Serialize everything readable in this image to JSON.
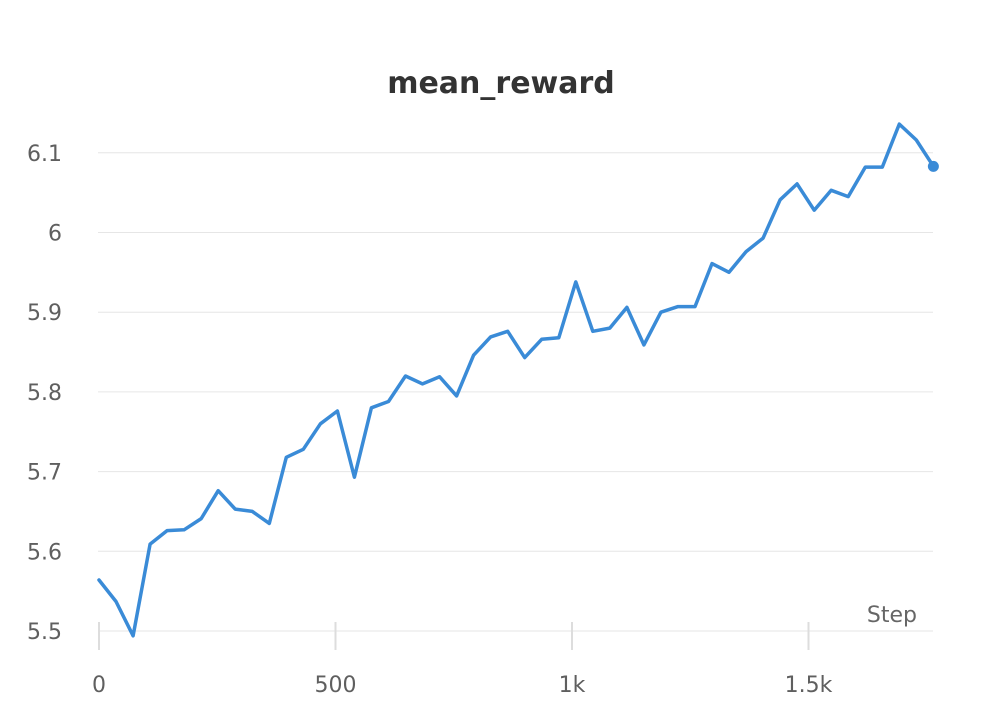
{
  "chart_data": {
    "type": "line",
    "title": "mean_reward",
    "xlabel": "Step",
    "ylabel": "",
    "xlim": [
      0,
      1760
    ],
    "ylim": [
      5.5,
      6.15
    ],
    "x_ticks": [
      {
        "value": 0,
        "label": "0"
      },
      {
        "value": 500,
        "label": "500"
      },
      {
        "value": 1000,
        "label": "1k"
      },
      {
        "value": 1500,
        "label": "1.5k"
      }
    ],
    "y_ticks": [
      {
        "value": 5.5,
        "label": "5.5"
      },
      {
        "value": 5.6,
        "label": "5.6"
      },
      {
        "value": 5.7,
        "label": "5.7"
      },
      {
        "value": 5.8,
        "label": "5.8"
      },
      {
        "value": 5.9,
        "label": "5.9"
      },
      {
        "value": 6.0,
        "label": "6"
      },
      {
        "value": 6.1,
        "label": "6.1"
      }
    ],
    "grid": true,
    "legend": "none",
    "series": [
      {
        "color": "#3a8bd7",
        "end_marker": true,
        "x": [
          0,
          36,
          72,
          108,
          144,
          180,
          216,
          252,
          288,
          324,
          360,
          396,
          432,
          468,
          504,
          540,
          576,
          612,
          648,
          684,
          720,
          756,
          792,
          828,
          864,
          900,
          936,
          972,
          1008,
          1044,
          1080,
          1116,
          1152,
          1188,
          1224,
          1260,
          1296,
          1332,
          1368,
          1404,
          1440,
          1476,
          1512,
          1548,
          1584,
          1620,
          1656,
          1692,
          1728,
          1764
        ],
        "values": [
          5.564,
          5.537,
          5.494,
          5.609,
          5.626,
          5.627,
          5.641,
          5.676,
          5.653,
          5.65,
          5.635,
          5.718,
          5.728,
          5.76,
          5.776,
          5.693,
          5.78,
          5.788,
          5.82,
          5.81,
          5.819,
          5.795,
          5.846,
          5.869,
          5.876,
          5.843,
          5.866,
          5.868,
          5.938,
          5.876,
          5.88,
          5.906,
          5.859,
          5.9,
          5.907,
          5.907,
          5.961,
          5.95,
          5.976,
          5.993,
          6.041,
          6.061,
          6.028,
          6.053,
          6.045,
          6.082,
          6.082,
          6.136,
          6.116,
          6.083
        ]
      }
    ]
  }
}
